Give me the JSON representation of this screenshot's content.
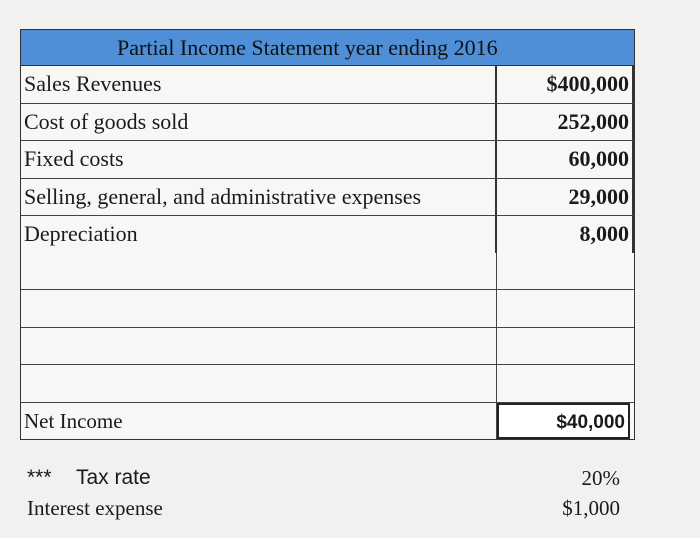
{
  "table": {
    "title": "Partial Income Statement year ending 2016",
    "rows": [
      [
        "Sales Revenues",
        "$400,000"
      ],
      [
        "Cost of goods sold",
        "252,000"
      ],
      [
        "Fixed costs",
        "60,000"
      ],
      [
        "Selling, general, and administrative expenses",
        "29,000"
      ],
      [
        "Depreciation",
        "8,000"
      ]
    ],
    "net_income": [
      "Net Income",
      "$40,000"
    ]
  },
  "notes": {
    "marker": "***",
    "tax_rate": [
      "Tax rate",
      "20%"
    ],
    "interest_expense": [
      "Interest expense",
      "$1,000"
    ]
  }
}
